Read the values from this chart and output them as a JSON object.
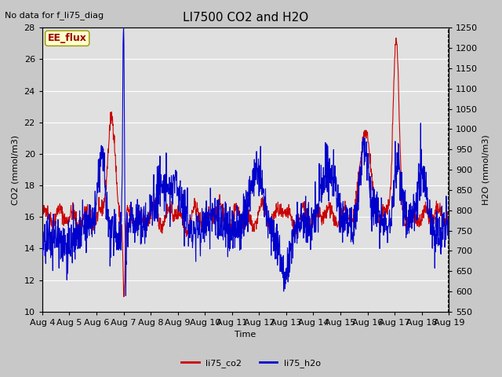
{
  "title": "LI7500 CO2 and H2O",
  "title_fontsize": 11,
  "top_left_text": "No data for f_li75_diag",
  "xlabel": "Time",
  "ylabel_left": "CO2 (mmol/m3)",
  "ylabel_right": "H2O (mmol/m3)",
  "ylim_left": [
    10,
    28
  ],
  "ylim_right": [
    550,
    1250
  ],
  "yticks_left": [
    10,
    12,
    14,
    16,
    18,
    20,
    22,
    24,
    26,
    28
  ],
  "yticks_right": [
    550,
    600,
    650,
    700,
    750,
    800,
    850,
    900,
    950,
    1000,
    1050,
    1100,
    1150,
    1200,
    1250
  ],
  "xtick_labels": [
    "Aug 4",
    "Aug 5",
    "Aug 6",
    "Aug 7",
    "Aug 8",
    "Aug 9",
    "Aug 10",
    "Aug 11",
    "Aug 12",
    "Aug 13",
    "Aug 14",
    "Aug 15",
    "Aug 16",
    "Aug 17",
    "Aug 18",
    "Aug 19"
  ],
  "legend_entries": [
    "li75_co2",
    "li75_h2o"
  ],
  "legend_colors": [
    "#cc0000",
    "#0000cc"
  ],
  "ee_flux_box_color": "#ffffcc",
  "ee_flux_text_color": "#990000",
  "fig_bg_color": "#c8c8c8",
  "plot_bg_color": "#e0e0e0",
  "grid_color": "#ffffff",
  "co2_color": "#cc0000",
  "h2o_color": "#0000cc",
  "font_size": 8
}
